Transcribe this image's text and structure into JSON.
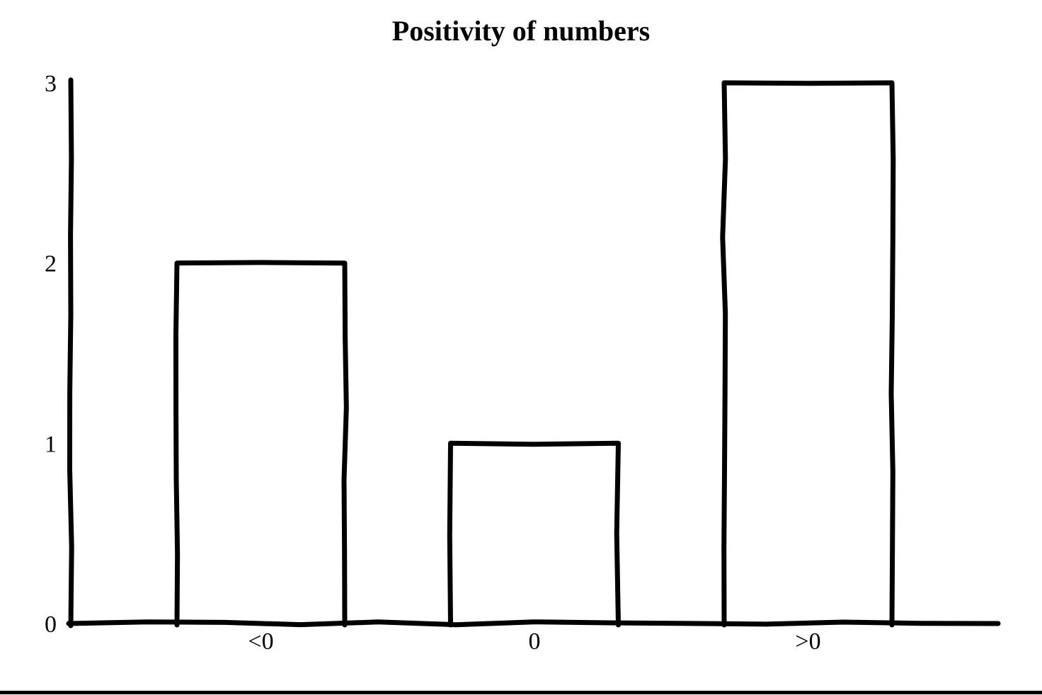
{
  "page": {
    "background_color": "#ffffff",
    "ink_color": "#000000",
    "bottom_rule_color": "#000000"
  },
  "chart_data": {
    "type": "bar",
    "title": "Positivity of numbers",
    "categories": [
      "<0",
      "0",
      ">0"
    ],
    "values": [
      2,
      1,
      3
    ],
    "xlabel": "",
    "ylabel": "",
    "ylim": [
      0,
      3
    ],
    "yticks": [
      0,
      1,
      2,
      3
    ],
    "grid": false,
    "legend": false,
    "style": {
      "bar_fill": "#ffffff",
      "bar_stroke": "#000000",
      "axis_stroke": "#000000",
      "hand_drawn": true
    }
  }
}
